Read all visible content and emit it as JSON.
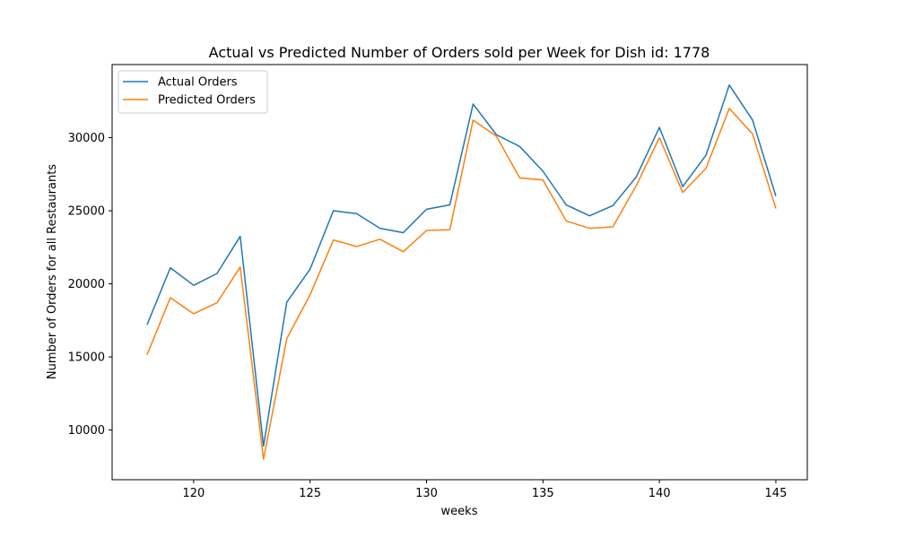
{
  "chart_data": {
    "type": "line",
    "title": "Actual vs Predicted Number of Orders sold per Week for Dish id: 1778",
    "xlabel": "weeks",
    "ylabel": "Number of Orders for all Restaurants",
    "xlim": [
      116.5,
      146.35
    ],
    "ylim": [
      6600,
      35000
    ],
    "xticks": [
      120,
      125,
      130,
      135,
      140,
      145
    ],
    "yticks": [
      10000,
      15000,
      20000,
      25000,
      30000
    ],
    "grid": false,
    "legend_position": "upper left",
    "x": [
      118,
      119,
      120,
      121,
      122,
      123,
      124,
      125,
      126,
      127,
      128,
      129,
      130,
      131,
      132,
      133,
      134,
      135,
      136,
      137,
      138,
      139,
      140,
      141,
      142,
      143,
      144,
      145
    ],
    "series": [
      {
        "name": "Actual Orders",
        "color": "#1f77b4",
        "values": [
          17200,
          21100,
          19900,
          20700,
          23250,
          8900,
          18750,
          21000,
          25000,
          24800,
          23800,
          23500,
          25100,
          25400,
          32300,
          30200,
          29400,
          27700,
          25400,
          24650,
          25350,
          27300,
          30700,
          26650,
          28800,
          33600,
          31200,
          26000
        ]
      },
      {
        "name": "Predicted Orders",
        "color": "#ff7f0e",
        "values": [
          15150,
          19050,
          17950,
          18700,
          21150,
          8000,
          16250,
          19250,
          23000,
          22550,
          23050,
          22200,
          23650,
          23700,
          31200,
          30100,
          27250,
          27100,
          24300,
          23800,
          23900,
          26700,
          30000,
          26250,
          27900,
          32000,
          30250,
          25150
        ]
      }
    ]
  }
}
